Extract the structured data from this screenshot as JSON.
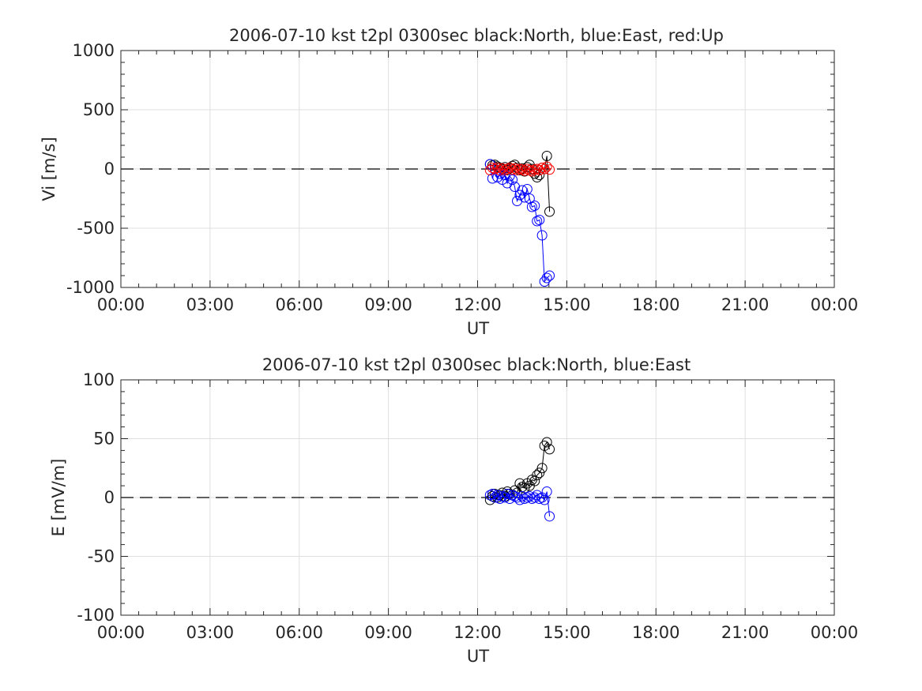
{
  "chart_data": [
    {
      "type": "scatter",
      "title": "2006-07-10 kst t2pl 0300sec black:North, blue:East, red:Up",
      "xlabel": "UT",
      "ylabel": "Vi [m/s]",
      "xlim": [
        0,
        24
      ],
      "ylim": [
        -1000,
        1000
      ],
      "xticks": [
        0,
        3,
        6,
        9,
        12,
        15,
        18,
        21,
        24
      ],
      "xtick_labels": [
        "00:00",
        "03:00",
        "06:00",
        "09:00",
        "12:00",
        "15:00",
        "18:00",
        "21:00",
        "00:00"
      ],
      "yticks": [
        -1000,
        -500,
        0,
        500,
        1000
      ],
      "ytick_labels": [
        "-1000",
        "-500",
        "0",
        "500",
        "1000"
      ],
      "grid": true,
      "zero_line": true,
      "series": [
        {
          "name": "North",
          "color": "#000000",
          "x": [
            12.42,
            12.5,
            12.58,
            12.67,
            12.75,
            12.83,
            12.92,
            13.0,
            13.08,
            13.17,
            13.25,
            13.33,
            13.42,
            13.5,
            13.58,
            13.67,
            13.75,
            13.83,
            13.92,
            14.0,
            14.08,
            14.17,
            14.25,
            14.33,
            14.42
          ],
          "y": [
            40,
            30,
            35,
            20,
            10,
            0,
            15,
            -10,
            5,
            25,
            35,
            10,
            -10,
            5,
            -20,
            15,
            35,
            0,
            -40,
            -70,
            -50,
            10,
            0,
            110,
            -360
          ]
        },
        {
          "name": "East",
          "color": "#0000ff",
          "x": [
            12.42,
            12.5,
            12.58,
            12.67,
            12.75,
            12.83,
            12.92,
            13.0,
            13.08,
            13.17,
            13.25,
            13.33,
            13.42,
            13.5,
            13.58,
            13.67,
            13.75,
            13.83,
            13.92,
            14.0,
            14.08,
            14.17,
            14.25,
            14.33,
            14.42
          ],
          "y": [
            40,
            -80,
            0,
            -70,
            -40,
            -90,
            -50,
            -120,
            -60,
            -90,
            -150,
            -270,
            -220,
            -180,
            -240,
            -170,
            -250,
            -320,
            -310,
            -440,
            -430,
            -560,
            -950,
            -920,
            -900
          ]
        },
        {
          "name": "Up",
          "color": "#ff0000",
          "x": [
            12.42,
            12.5,
            12.58,
            12.67,
            12.75,
            12.83,
            12.92,
            13.0,
            13.08,
            13.17,
            13.25,
            13.33,
            13.42,
            13.5,
            13.58,
            13.67,
            13.75,
            13.83,
            13.92,
            14.0,
            14.08,
            14.17,
            14.25,
            14.33,
            14.42
          ],
          "y": [
            -10,
            10,
            0,
            10,
            -10,
            5,
            -10,
            0,
            10,
            -5,
            5,
            -10,
            0,
            -5,
            -15,
            0,
            -10,
            -20,
            -5,
            0,
            -10,
            10,
            0,
            20,
            -5
          ]
        }
      ]
    },
    {
      "type": "scatter",
      "title": "2006-07-10 kst t2pl 0300sec black:North, blue:East",
      "xlabel": "UT",
      "ylabel": "E [mV/m]",
      "xlim": [
        0,
        24
      ],
      "ylim": [
        -100,
        100
      ],
      "xticks": [
        0,
        3,
        6,
        9,
        12,
        15,
        18,
        21,
        24
      ],
      "xtick_labels": [
        "00:00",
        "03:00",
        "06:00",
        "09:00",
        "12:00",
        "15:00",
        "18:00",
        "21:00",
        "00:00"
      ],
      "yticks": [
        -100,
        -50,
        0,
        50,
        100
      ],
      "ytick_labels": [
        "-100",
        "-50",
        "0",
        "50",
        "100"
      ],
      "grid": true,
      "zero_line": true,
      "series": [
        {
          "name": "North",
          "color": "#000000",
          "x": [
            12.42,
            12.5,
            12.58,
            12.67,
            12.75,
            12.83,
            12.92,
            13.0,
            13.08,
            13.17,
            13.25,
            13.33,
            13.42,
            13.5,
            13.58,
            13.67,
            13.75,
            13.83,
            13.92,
            14.0,
            14.08,
            14.17,
            14.25,
            14.33,
            14.42
          ],
          "y": [
            -2,
            1,
            3,
            0,
            2,
            4,
            1,
            5,
            3,
            2,
            6,
            4,
            12,
            9,
            8,
            12,
            10,
            15,
            14,
            19,
            21,
            25,
            44,
            47,
            41
          ]
        },
        {
          "name": "East",
          "color": "#0000ff",
          "x": [
            12.42,
            12.5,
            12.58,
            12.67,
            12.75,
            12.83,
            12.92,
            13.0,
            13.08,
            13.17,
            13.25,
            13.33,
            13.42,
            13.5,
            13.58,
            13.67,
            13.75,
            13.83,
            13.92,
            14.0,
            14.08,
            14.17,
            14.25,
            14.33,
            14.42
          ],
          "y": [
            2,
            3,
            0,
            2,
            -1,
            1,
            0,
            3,
            -1,
            2,
            1,
            0,
            -2,
            1,
            -1,
            0,
            1,
            -1,
            0,
            2,
            -1,
            0,
            -2,
            5,
            -16
          ]
        }
      ]
    }
  ]
}
